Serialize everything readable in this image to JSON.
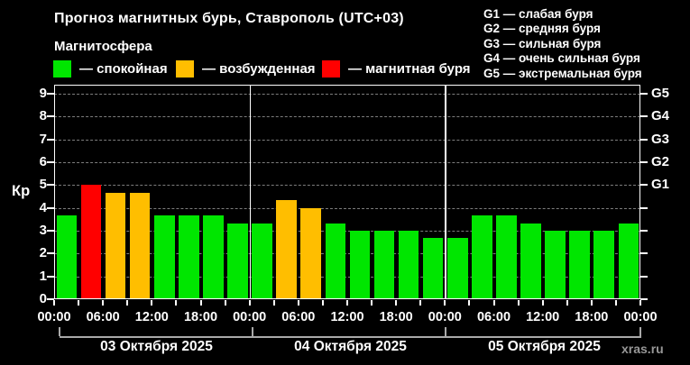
{
  "header": {
    "title": "Прогноз магнитных бурь, Ставрополь (UTC+03)",
    "subtitle": "Магнитосфера",
    "legend": [
      {
        "id": "quiet",
        "label": "— спокойная",
        "color": "#00e600"
      },
      {
        "id": "unsettled",
        "label": "— возбужденная",
        "color": "#ffbe00"
      },
      {
        "id": "storm",
        "label": "— магнитная буря",
        "color": "#ff0000"
      }
    ],
    "g_scale_legend": [
      "G1 — слабая буря",
      "G2 — средняя буря",
      "G3 — сильная буря",
      "G4 — очень сильная буря",
      "G5 — экстремальная буря"
    ]
  },
  "chart_data": {
    "type": "bar",
    "title": "Прогноз магнитных бурь, Ставрополь (UTC+03)",
    "ylabel": "Кр",
    "ylim": [
      0,
      9.4
    ],
    "y_ticks": [
      0,
      1,
      2,
      3,
      4,
      5,
      6,
      7,
      8,
      9
    ],
    "right_axis": [
      {
        "value": 5,
        "label": "G1"
      },
      {
        "value": 6,
        "label": "G2"
      },
      {
        "value": 7,
        "label": "G3"
      },
      {
        "value": 8,
        "label": "G4"
      },
      {
        "value": 9,
        "label": "G5"
      }
    ],
    "grid": "horizontal-dashed",
    "bar_interval_hours": 3,
    "time_ticks": [
      "00:00",
      "06:00",
      "12:00",
      "18:00",
      "00:00",
      "06:00",
      "12:00",
      "18:00",
      "00:00",
      "06:00",
      "12:00",
      "18:00",
      "00:00"
    ],
    "status_colors": {
      "quiet": "#00e600",
      "unsettled": "#ffbe00",
      "storm": "#ff0000"
    },
    "days": [
      {
        "date": "03 Октября 2025",
        "values": [
          3.67,
          5,
          4.67,
          4.67,
          3.67,
          3.67,
          3.67,
          3.33
        ],
        "status": [
          "quiet",
          "storm",
          "unsettled",
          "unsettled",
          "quiet",
          "quiet",
          "quiet",
          "quiet"
        ]
      },
      {
        "date": "04 Октября 2025",
        "values": [
          3.33,
          4.33,
          4,
          3.33,
          3,
          3,
          3,
          2.67
        ],
        "status": [
          "quiet",
          "unsettled",
          "unsettled",
          "quiet",
          "quiet",
          "quiet",
          "quiet",
          "quiet"
        ]
      },
      {
        "date": "05 Октября 2025",
        "values": [
          2.67,
          3.67,
          3.67,
          3.33,
          3,
          3,
          3,
          3.33
        ],
        "status": [
          "quiet",
          "quiet",
          "quiet",
          "quiet",
          "quiet",
          "quiet",
          "quiet",
          "quiet"
        ]
      }
    ]
  },
  "watermark": "xras.ru"
}
